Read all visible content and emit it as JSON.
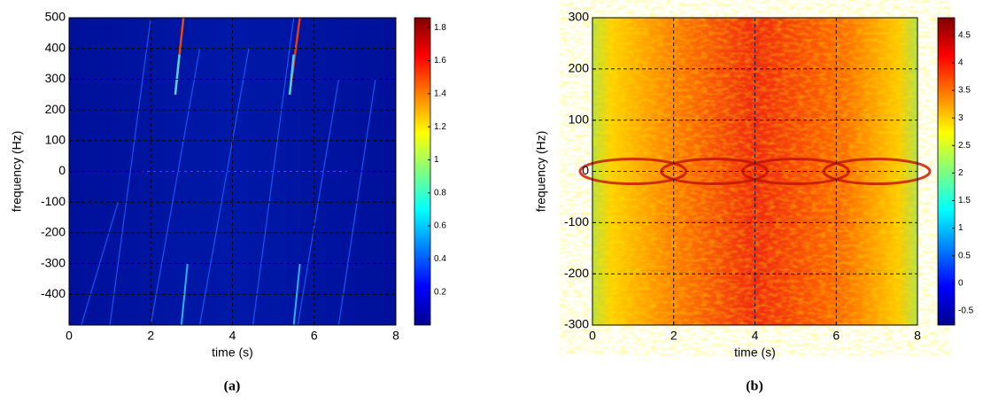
{
  "chart_data": [
    {
      "type": "heatmap",
      "caption": "(a)",
      "xlabel": "time (s)",
      "ylabel": "frequency (Hz)",
      "xlim": [
        0,
        8
      ],
      "xticks": [
        0,
        2,
        4,
        6,
        8
      ],
      "ylim": [
        -500,
        500
      ],
      "yticks": [
        -400,
        -300,
        -200,
        -100,
        0,
        100,
        200,
        300,
        400,
        500
      ],
      "grid": true,
      "colormap": "jet",
      "clim": [
        0,
        1.86
      ],
      "cticks": [
        0.2,
        0.4,
        0.6,
        0.8,
        1,
        1.2,
        1.4,
        1.6,
        1.8
      ]
    },
    {
      "type": "heatmap",
      "caption": "(b)",
      "xlabel": "time (s)",
      "ylabel": "frequency (Hz)",
      "xlim": [
        0,
        8
      ],
      "xticks": [
        0,
        2,
        4,
        6,
        8
      ],
      "ylim": [
        -300,
        300
      ],
      "yticks": [
        -300,
        -200,
        -100,
        0,
        100,
        200,
        300
      ],
      "grid": true,
      "colormap": "jet",
      "clim": [
        -0.76,
        4.82
      ],
      "cticks": [
        -0.5,
        0,
        0.5,
        1,
        1.5,
        2,
        2.5,
        3,
        3.5,
        4,
        4.5
      ]
    }
  ]
}
